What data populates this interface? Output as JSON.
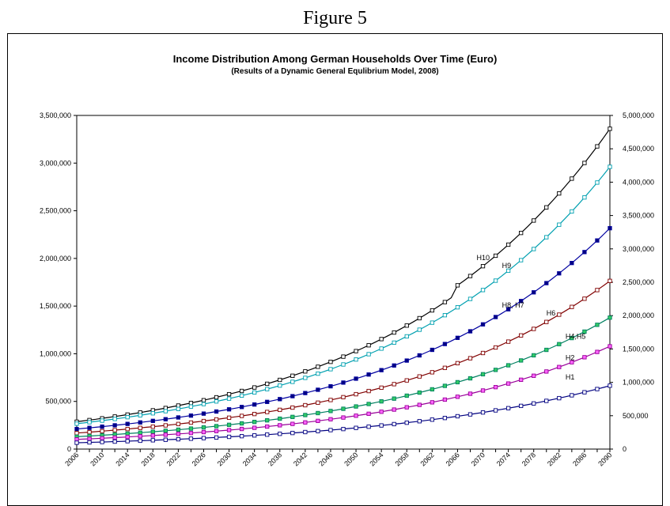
{
  "figure_label": "Figure 5",
  "chart_data": {
    "type": "line",
    "title": "Income Distribution Among German Households Over Time (Euro)",
    "subtitle": "(Results of a Dynamic General Equlibrium Model, 2008)",
    "xlabel": "",
    "ylabel": "",
    "x_range": [
      2006,
      2090
    ],
    "x_tick_labels": [
      "2006",
      "2010",
      "2014",
      "2018",
      "2022",
      "2026",
      "2030",
      "2034",
      "2038",
      "2042",
      "2046",
      "2050",
      "2054",
      "2058",
      "2062",
      "2066",
      "2070",
      "2074",
      "2078",
      "2082",
      "2086",
      "2090"
    ],
    "y_left": {
      "ylim": [
        0,
        3500000
      ],
      "tick_labels": [
        "0",
        "500,000",
        "1,000,000",
        "1,500,000",
        "2,000,000",
        "2,500,000",
        "3,000,000",
        "3,500,000"
      ]
    },
    "y_right": {
      "ylim": [
        0,
        5000000
      ],
      "tick_labels": [
        "0",
        "500,000",
        "1,000,000",
        "1,500,000",
        "2,000,000",
        "2,500,000",
        "3,000,000",
        "3,500,000",
        "4,000,000",
        "4,500,000",
        "5,000,000"
      ]
    },
    "grid": false,
    "marker": "square",
    "series": [
      {
        "name": "H10",
        "axis": "right",
        "color": "#000000",
        "marker_fill": "#ffffff",
        "start": 410000,
        "end": 4680000,
        "jump_year": 2066,
        "jump": 120000
      },
      {
        "name": "H9",
        "axis": "right",
        "color": "#00a0b0",
        "marker_fill": "#ffffff",
        "start": 380000,
        "end": 4230000
      },
      {
        "name": "H8, H7",
        "axis": "right",
        "color": "#0000a0",
        "marker_fill": "#000080",
        "start": 300000,
        "end": 3310000
      },
      {
        "name": "H6",
        "axis": "right",
        "color": "#800000",
        "marker_fill": "#ffffff",
        "start": 240000,
        "end": 2520000
      },
      {
        "name": "H4,H5",
        "axis": "right",
        "color": "#008060",
        "marker_fill": "#33cc66",
        "start": 185000,
        "end": 1970000
      },
      {
        "name": "H2",
        "axis": "right",
        "color": "#990099",
        "marker_fill": "#ff66ff",
        "start": 145000,
        "end": 1540000
      },
      {
        "name": "H1",
        "axis": "right",
        "color": "#000080",
        "marker_fill": "#ffffff",
        "start": 95000,
        "end": 950000
      }
    ]
  }
}
